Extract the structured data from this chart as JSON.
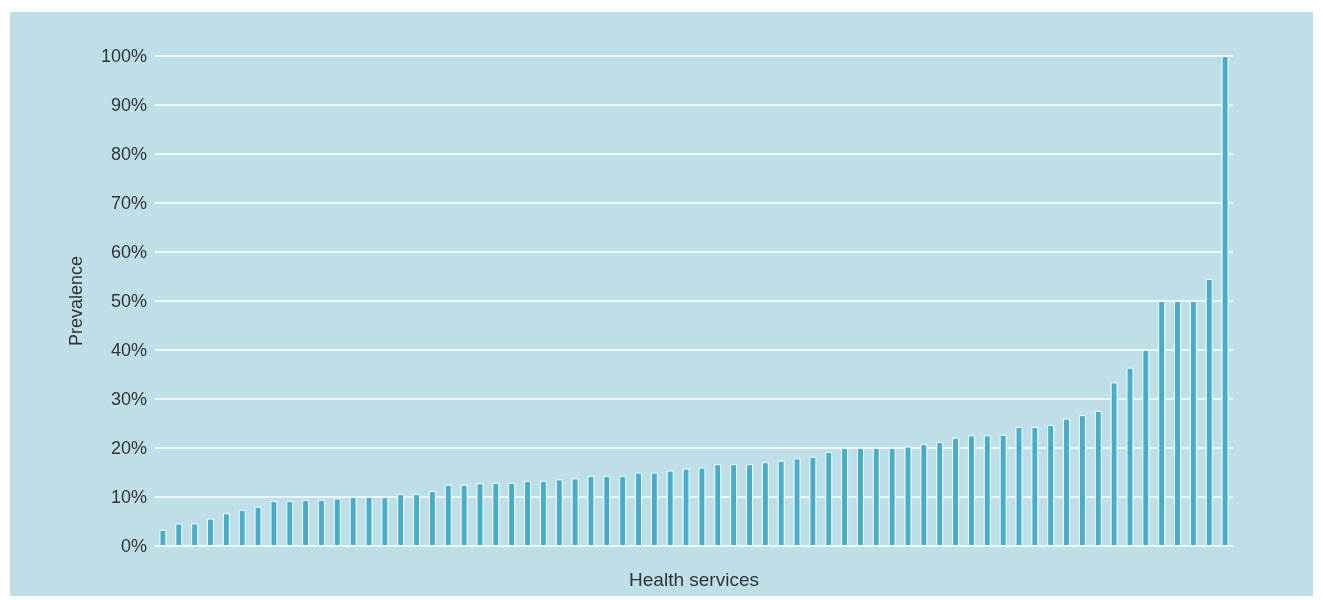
{
  "chart_data": {
    "type": "bar",
    "xlabel": "Health services",
    "ylabel": "Prevalence",
    "categories": [
      null,
      null,
      null,
      null,
      null,
      null,
      null,
      null,
      null,
      null,
      null,
      null,
      null,
      null,
      null,
      null,
      null,
      null,
      null,
      null,
      null,
      null,
      null,
      null,
      null,
      null,
      null,
      null,
      null,
      null,
      null,
      null,
      null,
      null,
      null,
      null,
      null,
      null,
      null,
      null,
      null,
      null,
      null,
      null,
      null,
      null,
      null,
      null,
      null,
      null,
      null,
      null,
      null,
      null,
      null,
      null,
      null,
      null,
      null,
      null,
      null,
      null,
      null,
      null,
      null,
      null,
      null,
      null
    ],
    "values": [
      3.3,
      4.6,
      4.6,
      5.6,
      6.7,
      7.4,
      8.0,
      9.2,
      9.2,
      9.4,
      9.4,
      9.7,
      10,
      10,
      10,
      10.6,
      10.6,
      11.2,
      12.5,
      12.5,
      12.8,
      12.9,
      12.9,
      13.3,
      13.3,
      13.6,
      13.8,
      14.3,
      14.3,
      14.3,
      15,
      15,
      15.4,
      15.8,
      16,
      16.7,
      16.7,
      16.7,
      17.1,
      17.4,
      17.9,
      18.2,
      19.2,
      20,
      20,
      20,
      20,
      20.3,
      20.8,
      21.2,
      22.1,
      22.6,
      22.6,
      22.7,
      24.3,
      24.3,
      24.7,
      26,
      26.7,
      27.6,
      33.4,
      36.4,
      40,
      50,
      50,
      50,
      54.5,
      100
    ],
    "color": "#44afcc",
    "ylim": [
      0,
      100
    ],
    "yticks": [
      {
        "value": 0,
        "label": "0%"
      },
      {
        "value": 10,
        "label": "10%"
      },
      {
        "value": 20,
        "label": "20%"
      },
      {
        "value": 30,
        "label": "30%"
      },
      {
        "value": 40,
        "label": "40%"
      },
      {
        "value": 50,
        "label": "50%"
      },
      {
        "value": 60,
        "label": "60%"
      },
      {
        "value": 70,
        "label": "70%"
      },
      {
        "value": 80,
        "label": "80%"
      },
      {
        "value": 90,
        "label": "90%"
      },
      {
        "value": 100,
        "label": "100%"
      }
    ],
    "grid": "y"
  }
}
